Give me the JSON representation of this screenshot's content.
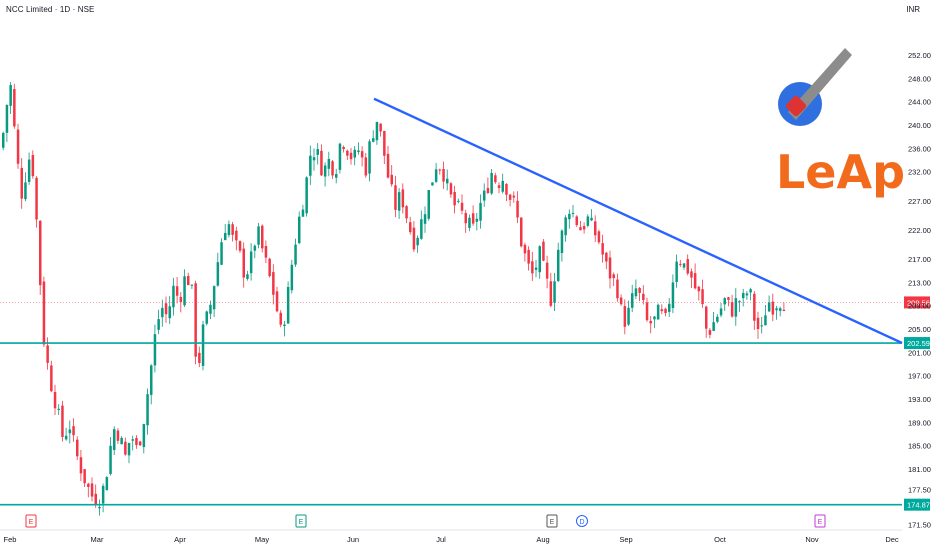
{
  "header": {
    "title": "NCC Limited · 1D · NSE",
    "currency": "INR"
  },
  "colors": {
    "up": "#089981",
    "down": "#f23645",
    "trend": "#2962ff",
    "support": "#00a99d",
    "current_price": "#f23645",
    "logo": "#f26b1d"
  },
  "chart_data": {
    "type": "candlestick",
    "y_ticks": [
      "252.00",
      "248.00",
      "244.00",
      "240.00",
      "236.00",
      "232.00",
      "227.00",
      "222.00",
      "217.00",
      "213.00",
      "209.00",
      "205.00",
      "201.00",
      "197.00",
      "193.00",
      "189.00",
      "185.00",
      "181.00",
      "177.50",
      "171.50"
    ],
    "x_ticks": [
      "Feb",
      "Mar",
      "Apr",
      "May",
      "Jun",
      "Jul",
      "Aug",
      "Sep",
      "Oct",
      "Nov",
      "Dec"
    ],
    "current_price": {
      "label": "209.56",
      "value": 209.56
    },
    "horizontal_lines": [
      {
        "label": "202.59",
        "value": 202.59
      },
      {
        "label": "174.87",
        "value": 174.87
      }
    ],
    "trendline": {
      "from": {
        "date": "Jun 1",
        "value": 244.5
      },
      "to": {
        "date": "Dec 5",
        "value": 202.6
      }
    },
    "event_markers": [
      {
        "month": "Feb",
        "letter": "E"
      },
      {
        "month": "May",
        "letter": "E"
      },
      {
        "month": "Aug",
        "letter": "E"
      },
      {
        "month": "Aug",
        "letter": "D"
      },
      {
        "month": "Nov",
        "letter": "E"
      }
    ],
    "close_path": [
      [
        0,
        236
      ],
      [
        6,
        244
      ],
      [
        10,
        247
      ],
      [
        14,
        237
      ],
      [
        20,
        228
      ],
      [
        25,
        232
      ],
      [
        30,
        236
      ],
      [
        36,
        222
      ],
      [
        42,
        204
      ],
      [
        48,
        197
      ],
      [
        55,
        192
      ],
      [
        62,
        186
      ],
      [
        68,
        189
      ],
      [
        74,
        184
      ],
      [
        80,
        181
      ],
      [
        86,
        178
      ],
      [
        92,
        176
      ],
      [
        100,
        176
      ],
      [
        106,
        181
      ],
      [
        112,
        188
      ],
      [
        118,
        187
      ],
      [
        124,
        183
      ],
      [
        130,
        187
      ],
      [
        136,
        184
      ],
      [
        142,
        189
      ],
      [
        148,
        196
      ],
      [
        154,
        204
      ],
      [
        160,
        209
      ],
      [
        166,
        207
      ],
      [
        172,
        212
      ],
      [
        178,
        210
      ],
      [
        184,
        214
      ],
      [
        190,
        213
      ],
      [
        196,
        197
      ],
      [
        202,
        205
      ],
      [
        208,
        208
      ],
      [
        214,
        214
      ],
      [
        220,
        220
      ],
      [
        226,
        224
      ],
      [
        232,
        220
      ],
      [
        238,
        218
      ],
      [
        244,
        214
      ],
      [
        250,
        217
      ],
      [
        256,
        222
      ],
      [
        262,
        218
      ],
      [
        268,
        214
      ],
      [
        274,
        210
      ],
      [
        280,
        204
      ],
      [
        286,
        210
      ],
      [
        292,
        218
      ],
      [
        298,
        224
      ],
      [
        304,
        229
      ],
      [
        310,
        236
      ],
      [
        316,
        235
      ],
      [
        322,
        232
      ],
      [
        328,
        234
      ],
      [
        334,
        232
      ],
      [
        340,
        238
      ],
      [
        346,
        236
      ],
      [
        352,
        234
      ],
      [
        358,
        236
      ],
      [
        364,
        232
      ],
      [
        370,
        238
      ],
      [
        376,
        241
      ],
      [
        382,
        236
      ],
      [
        388,
        230
      ],
      [
        394,
        226
      ],
      [
        400,
        228
      ],
      [
        406,
        224
      ],
      [
        412,
        220
      ],
      [
        418,
        222
      ],
      [
        424,
        226
      ],
      [
        430,
        230
      ],
      [
        436,
        234
      ],
      [
        442,
        232
      ],
      [
        448,
        228
      ],
      [
        454,
        226
      ],
      [
        460,
        225
      ],
      [
        466,
        223
      ],
      [
        472,
        222
      ],
      [
        478,
        226
      ],
      [
        484,
        228
      ],
      [
        490,
        232
      ],
      [
        496,
        230
      ],
      [
        502,
        231
      ],
      [
        508,
        228
      ],
      [
        514,
        226
      ],
      [
        520,
        220
      ],
      [
        526,
        216
      ],
      [
        532,
        214
      ],
      [
        538,
        218
      ],
      [
        544,
        214
      ],
      [
        550,
        210
      ],
      [
        556,
        218
      ],
      [
        562,
        222
      ],
      [
        568,
        226
      ],
      [
        574,
        224
      ],
      [
        580,
        222
      ],
      [
        586,
        224
      ],
      [
        592,
        222
      ],
      [
        598,
        220
      ],
      [
        604,
        216
      ],
      [
        610,
        214
      ],
      [
        616,
        212
      ],
      [
        622,
        206
      ],
      [
        628,
        208
      ],
      [
        634,
        212
      ],
      [
        640,
        210
      ],
      [
        646,
        206
      ],
      [
        652,
        206
      ],
      [
        658,
        208
      ],
      [
        664,
        206
      ],
      [
        670,
        212
      ],
      [
        676,
        218
      ],
      [
        682,
        216
      ],
      [
        688,
        215
      ],
      [
        694,
        212
      ],
      [
        700,
        210
      ],
      [
        706,
        204
      ],
      [
        712,
        206
      ],
      [
        718,
        208
      ],
      [
        724,
        210
      ],
      [
        730,
        208
      ],
      [
        736,
        210
      ],
      [
        742,
        210
      ],
      [
        748,
        212
      ],
      [
        754,
        206
      ],
      [
        760,
        204
      ],
      [
        766,
        210
      ],
      [
        772,
        209
      ],
      [
        778,
        210
      ],
      [
        784,
        209.56
      ]
    ]
  },
  "logo": {
    "text": "LeAp"
  }
}
